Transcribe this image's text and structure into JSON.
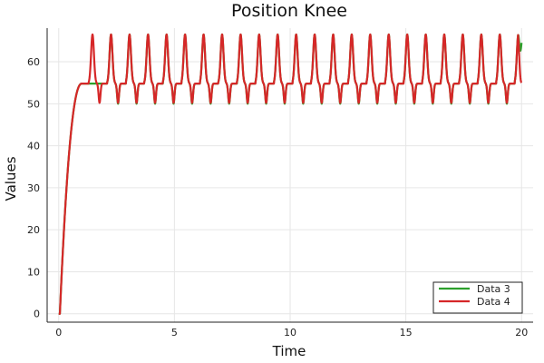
{
  "chart_data": {
    "type": "line",
    "title": "Position Knee",
    "xlabel": "Time",
    "ylabel": "Values",
    "xlim": [
      -0.5,
      20.5
    ],
    "ylim": [
      -2,
      68
    ],
    "xticks": [
      0,
      5,
      10,
      15,
      20
    ],
    "yticks": [
      0,
      10,
      20,
      30,
      40,
      50,
      60
    ],
    "grid": true,
    "legend": {
      "position": "bottom-right"
    },
    "series": [
      {
        "name": "Data 3",
        "color": "#2ca02c",
        "rise": {
          "t0": 0.05,
          "t1": 1.0,
          "plateau": 54.8
        },
        "oscillation": {
          "start": 2.1,
          "period": 0.8,
          "peak": 66.5,
          "trough": 50.0,
          "base": 54.8
        },
        "end_value": 64.5
      },
      {
        "name": "Data 4",
        "color": "#d62728",
        "rise": {
          "t0": 0.05,
          "t1": 1.0,
          "plateau": 54.8
        },
        "oscillation": {
          "start": 1.3,
          "period": 0.8,
          "peak": 66.5,
          "trough": 50.2,
          "base": 54.8
        },
        "end_value": 55.0
      }
    ]
  }
}
